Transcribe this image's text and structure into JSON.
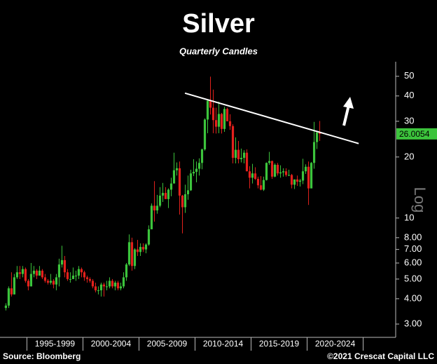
{
  "chart_data": {
    "type": "candlestick",
    "title": "Silver",
    "subtitle": "Quarterly Candles",
    "source": "Source: Bloomberg",
    "copyright": "©2021 Crescat Capital LLC",
    "axis_note": "Log",
    "log_scale": true,
    "up_color": "#3cc43c",
    "down_color": "#e3211c",
    "last_price": 26.0054,
    "x": [
      1993,
      1993.25,
      1993.5,
      1993.75,
      1994,
      1994.25,
      1994.5,
      1994.75,
      1995,
      1995.25,
      1995.5,
      1995.75,
      1996,
      1996.25,
      1996.5,
      1996.75,
      1997,
      1997.25,
      1997.5,
      1997.75,
      1998,
      1998.25,
      1998.5,
      1998.75,
      1999,
      1999.25,
      1999.5,
      1999.75,
      2000,
      2000.25,
      2000.5,
      2000.75,
      2001,
      2001.25,
      2001.5,
      2001.75,
      2002,
      2002.25,
      2002.5,
      2002.75,
      2003,
      2003.25,
      2003.5,
      2003.75,
      2004,
      2004.25,
      2004.5,
      2004.75,
      2005,
      2005.25,
      2005.5,
      2005.75,
      2006,
      2006.25,
      2006.5,
      2006.75,
      2007,
      2007.25,
      2007.5,
      2007.75,
      2008,
      2008.25,
      2008.5,
      2008.75,
      2009,
      2009.25,
      2009.5,
      2009.75,
      2010,
      2010.25,
      2010.5,
      2010.75,
      2011,
      2011.25,
      2011.5,
      2011.75,
      2012,
      2012.25,
      2012.5,
      2012.75,
      2013,
      2013.25,
      2013.5,
      2013.75,
      2014,
      2014.25,
      2014.5,
      2014.75,
      2015,
      2015.25,
      2015.5,
      2015.75,
      2016,
      2016.25,
      2016.5,
      2016.75,
      2017,
      2017.25,
      2017.5,
      2017.75,
      2018,
      2018.25,
      2018.5,
      2018.75,
      2019,
      2019.25,
      2019.5,
      2019.75,
      2020,
      2020.25,
      2020.5,
      2020.75,
      2021
    ],
    "open": [
      3.6,
      3.7,
      4.5,
      4.2,
      5.1,
      5.4,
      5.3,
      5.6,
      4.9,
      4.6,
      5.3,
      5.5,
      5.2,
      5.5,
      5.1,
      4.9,
      4.8,
      4.9,
      4.7,
      5.1,
      5.9,
      6.2,
      5.4,
      5.0,
      5.0,
      5.2,
      5.2,
      5.6,
      5.4,
      5.1,
      5.0,
      4.9,
      4.6,
      4.4,
      4.4,
      4.7,
      4.6,
      4.6,
      4.9,
      4.6,
      4.8,
      4.5,
      4.6,
      5.1,
      5.9,
      7.6,
      5.8,
      7.0,
      6.8,
      7.2,
      7.0,
      7.4,
      8.8,
      11.5,
      10.9,
      11.5,
      12.9,
      13.3,
      12.4,
      13.8,
      14.8,
      17.2,
      17.6,
      12.9,
      11.3,
      13.1,
      13.7,
      16.6,
      16.9,
      17.5,
      18.7,
      21.8,
      30.6,
      37.9,
      35.0,
      30.4,
      28.2,
      32.6,
      27.5,
      34.5,
      30.0,
      28.4,
      19.8,
      21.7,
      19.5,
      19.8,
      21.0,
      17.0,
      15.8,
      16.6,
      15.6,
      14.5,
      13.8,
      15.4,
      18.7,
      19.1,
      16.0,
      18.3,
      16.6,
      16.8,
      17.0,
      16.3,
      16.3,
      14.6,
      15.5,
      15.1,
      15.3,
      17.0,
      17.9,
      14.0,
      18.7,
      23.7,
      26.4
    ],
    "high": [
      3.8,
      4.6,
      5.4,
      5.3,
      5.8,
      5.8,
      5.8,
      5.7,
      5.0,
      6.0,
      5.8,
      5.6,
      5.8,
      5.6,
      5.3,
      5.0,
      5.3,
      5.0,
      5.3,
      6.3,
      7.3,
      6.5,
      5.6,
      5.4,
      5.7,
      5.5,
      5.8,
      5.7,
      5.5,
      5.2,
      5.1,
      5.0,
      4.8,
      4.6,
      4.8,
      4.8,
      4.9,
      5.1,
      5.0,
      4.9,
      4.9,
      4.8,
      5.4,
      6.0,
      8.3,
      8.0,
      7.1,
      7.8,
      7.5,
      7.5,
      7.5,
      9.2,
      11.8,
      15.2,
      13.0,
      14.2,
      14.9,
      14.2,
      14.0,
      15.8,
      21.0,
      18.8,
      19.0,
      13.0,
      14.6,
      16.2,
      17.3,
      19.5,
      19.0,
      19.7,
      22.0,
      31.0,
      38.3,
      49.8,
      43.0,
      35.0,
      37.5,
      33.0,
      35.4,
      35.0,
      32.5,
      29.0,
      25.0,
      24.0,
      22.0,
      21.6,
      21.8,
      18.0,
      18.5,
      17.8,
      16.0,
      16.1,
      16.0,
      18.8,
      21.2,
      19.2,
      18.6,
      18.7,
      18.2,
      17.6,
      17.6,
      17.3,
      16.5,
      15.5,
      16.2,
      15.6,
      19.6,
      18.4,
      19.0,
      18.9,
      29.8,
      26.8,
      30.1
    ],
    "low": [
      3.5,
      3.6,
      4.1,
      4.2,
      5.0,
      5.0,
      5.1,
      4.8,
      4.4,
      4.6,
      5.1,
      5.0,
      5.2,
      5.0,
      4.8,
      4.7,
      4.7,
      4.5,
      4.4,
      4.6,
      5.7,
      5.1,
      4.9,
      4.8,
      5.0,
      4.9,
      5.0,
      5.1,
      4.9,
      4.8,
      4.8,
      4.5,
      4.3,
      4.2,
      4.1,
      4.1,
      4.4,
      4.5,
      4.5,
      4.4,
      4.4,
      4.4,
      4.5,
      4.9,
      5.8,
      5.5,
      5.6,
      6.5,
      6.5,
      6.8,
      6.7,
      7.3,
      8.8,
      9.6,
      10.5,
      11.3,
      12.0,
      12.4,
      11.2,
      12.8,
      14.8,
      16.2,
      10.4,
      8.4,
      10.6,
      12.3,
      13.6,
      16.1,
      15.0,
      16.2,
      17.4,
      21.5,
      26.2,
      32.4,
      26.2,
      26.1,
      26.2,
      26.1,
      26.6,
      30.0,
      27.2,
      18.6,
      18.6,
      18.6,
      18.8,
      18.6,
      17.0,
      14.0,
      14.8,
      15.4,
      14.0,
      13.7,
      13.6,
      15.3,
      18.3,
      15.6,
      15.9,
      16.2,
      15.8,
      16.0,
      16.0,
      16.1,
      14.0,
      13.9,
      14.4,
      14.3,
      14.7,
      16.5,
      11.6,
      14.0,
      17.5,
      21.9,
      24.0
    ],
    "close": [
      3.7,
      4.5,
      4.2,
      5.1,
      5.4,
      5.3,
      5.6,
      4.9,
      4.6,
      5.3,
      5.5,
      5.2,
      5.5,
      5.1,
      4.9,
      4.8,
      4.9,
      4.7,
      5.1,
      5.9,
      6.2,
      5.4,
      5.0,
      5.0,
      5.2,
      5.2,
      5.6,
      5.4,
      5.1,
      5.0,
      4.9,
      4.6,
      4.4,
      4.4,
      4.7,
      4.6,
      4.6,
      4.9,
      4.6,
      4.8,
      4.5,
      4.6,
      5.1,
      5.9,
      7.6,
      5.8,
      7.0,
      6.8,
      7.2,
      7.0,
      7.4,
      8.8,
      11.5,
      10.9,
      11.5,
      12.9,
      13.3,
      12.4,
      13.8,
      14.8,
      17.2,
      17.6,
      12.9,
      11.3,
      13.1,
      13.7,
      16.6,
      16.9,
      17.5,
      18.7,
      21.8,
      30.6,
      37.9,
      35.0,
      30.4,
      28.2,
      32.6,
      27.5,
      34.5,
      30.0,
      28.4,
      19.8,
      21.7,
      19.5,
      19.8,
      21.0,
      17.0,
      15.8,
      16.6,
      15.6,
      14.5,
      13.8,
      15.4,
      18.7,
      19.1,
      16.0,
      18.3,
      16.6,
      16.8,
      17.0,
      16.3,
      16.3,
      14.6,
      15.5,
      15.1,
      15.3,
      17.0,
      17.9,
      14.0,
      18.7,
      23.7,
      26.4,
      26.0
    ],
    "trendline": {
      "x": [
        2009.1,
        2024.6
      ],
      "y": [
        41.3,
        23.3
      ]
    },
    "xlim": [
      1992.6,
      2027.9
    ],
    "xticks": [
      {
        "value": 1997.5,
        "label": "1995-1999"
      },
      {
        "value": 2002.5,
        "label": "2000-2004"
      },
      {
        "value": 2007.5,
        "label": "2005-2009"
      },
      {
        "value": 2012.5,
        "label": "2010-2014"
      },
      {
        "value": 2017.5,
        "label": "2015-2019"
      },
      {
        "value": 2022.5,
        "label": "2020-2024"
      }
    ],
    "ylim": [
      2.6,
      59
    ],
    "yticks": [
      {
        "value": 3,
        "label": "3.00"
      },
      {
        "value": 4,
        "label": "4.00"
      },
      {
        "value": 5,
        "label": "5.00"
      },
      {
        "value": 6,
        "label": "6.00"
      },
      {
        "value": 7,
        "label": "7.00"
      },
      {
        "value": 8,
        "label": "8.00"
      },
      10,
      20,
      30,
      40,
      50
    ]
  }
}
